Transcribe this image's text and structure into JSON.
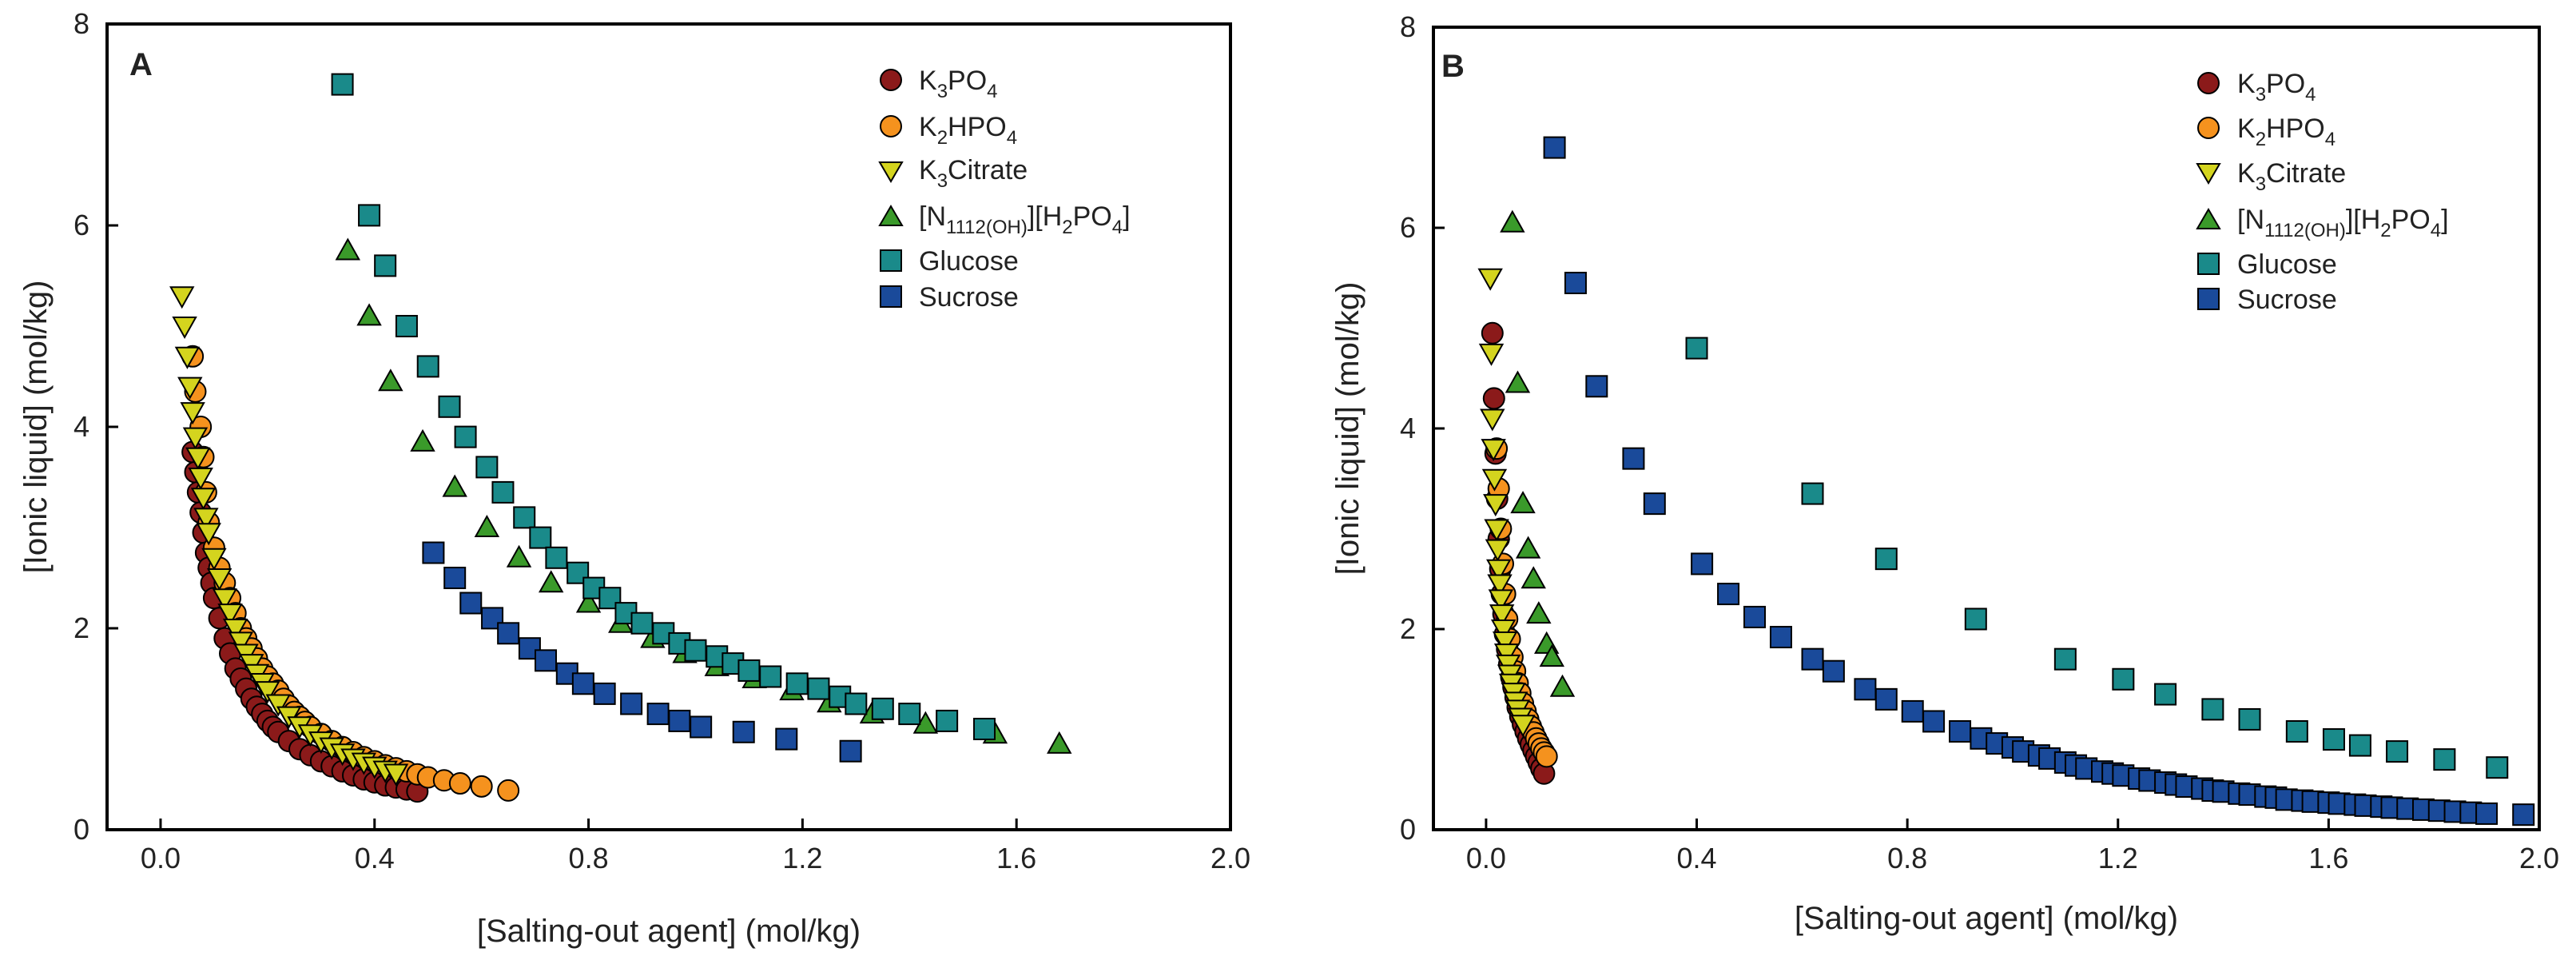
{
  "chart_data": [
    {
      "type": "scatter",
      "panel": "A",
      "xlabel": "[Salting-out agent] (mol/kg)",
      "ylabel": "[Ionic liquid] (mol/kg)",
      "xlim": [
        -0.1,
        2.0
      ],
      "ylim": [
        0,
        8
      ],
      "xticks": [
        "0.0",
        "0.4",
        "0.8",
        "1.2",
        "1.6",
        "2.0"
      ],
      "yticks": [
        "0",
        "2",
        "4",
        "6",
        "8"
      ],
      "legend_position": "top-right",
      "grid": false,
      "series": [
        {
          "name": "K3PO4",
          "marker": "circle",
          "color": "#8b1a1a",
          "x": [
            0.06,
            0.065,
            0.07,
            0.075,
            0.08,
            0.085,
            0.09,
            0.095,
            0.1,
            0.11,
            0.12,
            0.13,
            0.14,
            0.15,
            0.16,
            0.17,
            0.18,
            0.19,
            0.2,
            0.21,
            0.22,
            0.24,
            0.26,
            0.28,
            0.3,
            0.32,
            0.34,
            0.36,
            0.38,
            0.4,
            0.42,
            0.44,
            0.46,
            0.48
          ],
          "y": [
            3.75,
            3.55,
            3.35,
            3.15,
            2.95,
            2.75,
            2.6,
            2.45,
            2.3,
            2.1,
            1.9,
            1.75,
            1.6,
            1.5,
            1.4,
            1.3,
            1.22,
            1.15,
            1.08,
            1.02,
            0.97,
            0.88,
            0.8,
            0.74,
            0.68,
            0.63,
            0.58,
            0.54,
            0.5,
            0.47,
            0.44,
            0.42,
            0.4,
            0.38
          ]
        },
        {
          "name": "K2HPO4",
          "marker": "circle",
          "color": "#f5921e",
          "x": [
            0.06,
            0.065,
            0.075,
            0.08,
            0.085,
            0.09,
            0.1,
            0.11,
            0.12,
            0.13,
            0.14,
            0.15,
            0.16,
            0.17,
            0.18,
            0.19,
            0.2,
            0.21,
            0.22,
            0.23,
            0.24,
            0.25,
            0.26,
            0.27,
            0.28,
            0.3,
            0.32,
            0.34,
            0.36,
            0.38,
            0.4,
            0.42,
            0.44,
            0.46,
            0.48,
            0.5,
            0.53,
            0.56,
            0.6,
            0.65
          ],
          "y": [
            4.7,
            4.35,
            4.0,
            3.7,
            3.35,
            3.05,
            2.8,
            2.6,
            2.45,
            2.3,
            2.15,
            2.0,
            1.9,
            1.8,
            1.7,
            1.6,
            1.52,
            1.45,
            1.38,
            1.3,
            1.23,
            1.17,
            1.12,
            1.07,
            1.02,
            0.95,
            0.88,
            0.82,
            0.77,
            0.72,
            0.68,
            0.64,
            0.61,
            0.58,
            0.55,
            0.52,
            0.49,
            0.46,
            0.43,
            0.39
          ]
        },
        {
          "name": "K3Citrate",
          "marker": "triangle-down",
          "color": "#d4d41e",
          "x": [
            0.04,
            0.045,
            0.05,
            0.055,
            0.06,
            0.065,
            0.07,
            0.075,
            0.08,
            0.085,
            0.09,
            0.1,
            0.11,
            0.12,
            0.13,
            0.14,
            0.15,
            0.16,
            0.17,
            0.18,
            0.19,
            0.2,
            0.22,
            0.24,
            0.26,
            0.28,
            0.3,
            0.32,
            0.34,
            0.36,
            0.38,
            0.4,
            0.42,
            0.44
          ],
          "y": [
            5.3,
            5.0,
            4.7,
            4.4,
            4.15,
            3.9,
            3.7,
            3.5,
            3.3,
            3.1,
            2.95,
            2.7,
            2.5,
            2.3,
            2.15,
            2.0,
            1.87,
            1.75,
            1.65,
            1.55,
            1.46,
            1.38,
            1.25,
            1.13,
            1.03,
            0.95,
            0.88,
            0.82,
            0.76,
            0.71,
            0.67,
            0.63,
            0.59,
            0.56
          ]
        },
        {
          "name": "[N1112(OH)][H2PO4]",
          "marker": "triangle-up",
          "color": "#3a9a2a",
          "x": [
            0.35,
            0.39,
            0.43,
            0.49,
            0.55,
            0.61,
            0.67,
            0.73,
            0.8,
            0.86,
            0.92,
            0.98,
            1.04,
            1.11,
            1.18,
            1.25,
            1.33,
            1.43,
            1.56,
            1.68
          ],
          "y": [
            5.75,
            5.1,
            4.45,
            3.85,
            3.4,
            3.0,
            2.7,
            2.45,
            2.25,
            2.05,
            1.9,
            1.75,
            1.62,
            1.5,
            1.38,
            1.26,
            1.15,
            1.05,
            0.95,
            0.85
          ]
        },
        {
          "name": "Glucose",
          "marker": "square",
          "color": "#1a8a8a",
          "x": [
            0.34,
            0.39,
            0.42,
            0.46,
            0.5,
            0.54,
            0.57,
            0.61,
            0.64,
            0.68,
            0.71,
            0.74,
            0.78,
            0.81,
            0.84,
            0.87,
            0.9,
            0.94,
            0.97,
            1.0,
            1.04,
            1.07,
            1.1,
            1.14,
            1.19,
            1.23,
            1.27,
            1.3,
            1.35,
            1.4,
            1.47,
            1.54
          ],
          "y": [
            7.4,
            6.1,
            5.6,
            5.0,
            4.6,
            4.2,
            3.9,
            3.6,
            3.35,
            3.1,
            2.9,
            2.7,
            2.55,
            2.4,
            2.3,
            2.15,
            2.05,
            1.95,
            1.85,
            1.78,
            1.72,
            1.65,
            1.58,
            1.52,
            1.45,
            1.4,
            1.32,
            1.25,
            1.2,
            1.15,
            1.08,
            1.0
          ]
        },
        {
          "name": "Sucrose",
          "marker": "square",
          "color": "#1a4a9a",
          "x": [
            0.51,
            0.55,
            0.58,
            0.62,
            0.65,
            0.69,
            0.72,
            0.76,
            0.79,
            0.83,
            0.88,
            0.93,
            0.97,
            1.01,
            1.09,
            1.17,
            1.29
          ],
          "y": [
            2.75,
            2.5,
            2.25,
            2.1,
            1.95,
            1.8,
            1.68,
            1.55,
            1.45,
            1.35,
            1.25,
            1.15,
            1.08,
            1.02,
            0.97,
            0.9,
            0.78
          ]
        }
      ]
    },
    {
      "type": "scatter",
      "panel": "B",
      "xlabel": "[Salting-out agent] (mol/kg)",
      "ylabel": "[Ionic liquid] (mol/kg)",
      "xlim": [
        -0.1,
        2.0
      ],
      "ylim": [
        0,
        8
      ],
      "xticks": [
        "0.0",
        "0.4",
        "0.8",
        "1.2",
        "1.6",
        "2.0"
      ],
      "yticks": [
        "0",
        "2",
        "4",
        "6",
        "8"
      ],
      "legend_position": "top-right",
      "grid": false,
      "series": [
        {
          "name": "K3PO4",
          "marker": "circle",
          "color": "#8b1a1a",
          "x": [
            0.012,
            0.015,
            0.018,
            0.021,
            0.024,
            0.027,
            0.03,
            0.033,
            0.036,
            0.04,
            0.044,
            0.048,
            0.052,
            0.056,
            0.06,
            0.065,
            0.07,
            0.075,
            0.08,
            0.085,
            0.09,
            0.095,
            0.1,
            0.105,
            0.11
          ],
          "y": [
            4.95,
            4.3,
            3.75,
            3.3,
            2.9,
            2.6,
            2.35,
            2.15,
            1.95,
            1.8,
            1.65,
            1.52,
            1.42,
            1.32,
            1.22,
            1.13,
            1.05,
            0.98,
            0.91,
            0.85,
            0.79,
            0.73,
            0.67,
            0.61,
            0.56
          ]
        },
        {
          "name": "K2HPO4",
          "marker": "circle",
          "color": "#f5921e",
          "x": [
            0.02,
            0.024,
            0.028,
            0.032,
            0.036,
            0.04,
            0.045,
            0.05,
            0.055,
            0.06,
            0.065,
            0.07,
            0.075,
            0.08,
            0.085,
            0.09,
            0.095,
            0.1,
            0.105,
            0.11,
            0.115
          ],
          "y": [
            3.8,
            3.4,
            3.0,
            2.65,
            2.35,
            2.1,
            1.9,
            1.72,
            1.58,
            1.46,
            1.36,
            1.26,
            1.18,
            1.1,
            1.03,
            0.97,
            0.91,
            0.86,
            0.81,
            0.77,
            0.73
          ]
        },
        {
          "name": "K3Citrate",
          "marker": "triangle-down",
          "color": "#d4d41e",
          "x": [
            0.008,
            0.01,
            0.012,
            0.014,
            0.016,
            0.018,
            0.02,
            0.022,
            0.024,
            0.026,
            0.028,
            0.03,
            0.033,
            0.036,
            0.039,
            0.042,
            0.045,
            0.048,
            0.052,
            0.056,
            0.06,
            0.065,
            0.07
          ],
          "y": [
            5.5,
            4.75,
            4.1,
            3.8,
            3.5,
            3.25,
            3.0,
            2.8,
            2.6,
            2.45,
            2.3,
            2.15,
            2.0,
            1.88,
            1.76,
            1.65,
            1.55,
            1.46,
            1.37,
            1.28,
            1.2,
            1.12,
            1.05
          ]
        },
        {
          "name": "[N1112(OH)][H2PO4]",
          "marker": "triangle-up",
          "color": "#3a9a2a",
          "x": [
            0.05,
            0.06,
            0.07,
            0.08,
            0.09,
            0.1,
            0.115,
            0.125,
            0.145
          ],
          "y": [
            6.05,
            4.45,
            3.25,
            2.8,
            2.5,
            2.15,
            1.85,
            1.72,
            1.42
          ]
        },
        {
          "name": "Glucose",
          "marker": "square",
          "color": "#1a8a8a",
          "x": [
            0.4,
            0.62,
            0.76,
            0.93,
            1.1,
            1.21,
            1.29,
            1.38,
            1.45,
            1.54,
            1.61,
            1.66,
            1.73,
            1.82,
            1.92
          ],
          "y": [
            4.8,
            3.35,
            2.7,
            2.1,
            1.7,
            1.5,
            1.35,
            1.2,
            1.1,
            0.98,
            0.9,
            0.84,
            0.78,
            0.7,
            0.62
          ]
        },
        {
          "name": "Sucrose",
          "marker": "square",
          "color": "#1a4a9a",
          "x": [
            0.13,
            0.17,
            0.21,
            0.28,
            0.32,
            0.41,
            0.46,
            0.51,
            0.56,
            0.62,
            0.66,
            0.72,
            0.76,
            0.81,
            0.85,
            0.9,
            0.94,
            0.97,
            1.0,
            1.02,
            1.05,
            1.07,
            1.1,
            1.12,
            1.14,
            1.17,
            1.19,
            1.21,
            1.24,
            1.26,
            1.29,
            1.31,
            1.33,
            1.36,
            1.38,
            1.4,
            1.43,
            1.45,
            1.48,
            1.5,
            1.52,
            1.55,
            1.57,
            1.6,
            1.62,
            1.65,
            1.67,
            1.7,
            1.72,
            1.75,
            1.78,
            1.81,
            1.84,
            1.87,
            1.9,
            1.97
          ],
          "y": [
            6.8,
            5.45,
            4.42,
            3.7,
            3.25,
            2.65,
            2.35,
            2.12,
            1.92,
            1.7,
            1.58,
            1.4,
            1.3,
            1.18,
            1.08,
            0.98,
            0.91,
            0.86,
            0.82,
            0.78,
            0.74,
            0.71,
            0.67,
            0.64,
            0.61,
            0.58,
            0.56,
            0.54,
            0.51,
            0.49,
            0.47,
            0.45,
            0.43,
            0.41,
            0.39,
            0.38,
            0.36,
            0.35,
            0.33,
            0.32,
            0.3,
            0.29,
            0.28,
            0.27,
            0.26,
            0.25,
            0.24,
            0.23,
            0.22,
            0.21,
            0.2,
            0.19,
            0.18,
            0.17,
            0.16,
            0.15
          ]
        }
      ]
    }
  ]
}
